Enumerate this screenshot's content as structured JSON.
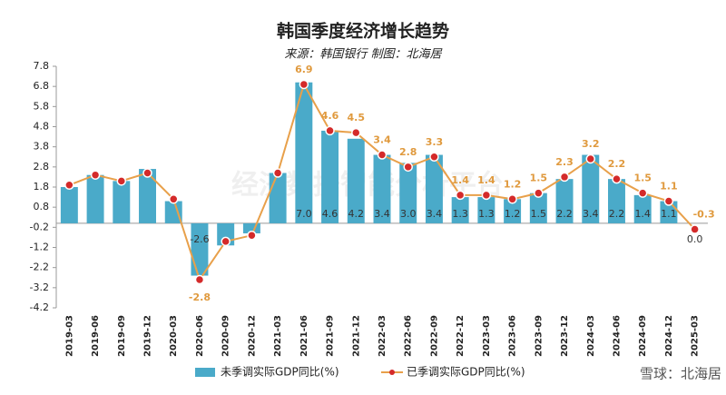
{
  "chart_data": {
    "type": "bar-line",
    "title": "韩国季度经济增长趋势",
    "subtitle": "来源：韩国银行  制图：北海居",
    "watermark": "雪球：北海居",
    "background_watermark": "经济数据智能分析平台",
    "categories": [
      "2019-03",
      "2019-06",
      "2019-09",
      "2019-12",
      "2020-03",
      "2020-06",
      "2020-09",
      "2020-12",
      "2021-03",
      "2021-06",
      "2021-09",
      "2021-12",
      "2022-03",
      "2022-06",
      "2022-09",
      "2022-12",
      "2023-03",
      "2023-06",
      "2023-09",
      "2023-12",
      "2024-03",
      "2024-06",
      "2024-09",
      "2024-12",
      "2025-03"
    ],
    "series": [
      {
        "name": "未季调实际GDP同比(%)",
        "type": "bar",
        "color": "#4aaac9",
        "values": [
          1.8,
          2.4,
          2.1,
          2.7,
          1.1,
          -2.6,
          -1.1,
          -0.5,
          2.5,
          7.0,
          4.6,
          4.2,
          3.4,
          3.0,
          3.4,
          1.3,
          1.3,
          1.2,
          1.5,
          2.2,
          3.4,
          2.2,
          1.4,
          1.1,
          0.0
        ],
        "value_labels": [
          null,
          null,
          null,
          null,
          null,
          "-2.6",
          null,
          null,
          null,
          "7.0",
          "4.6",
          "4.2",
          "3.4",
          "3.0",
          "3.4",
          "1.3",
          "1.3",
          "1.2",
          "1.5",
          "2.2",
          "3.4",
          "2.2",
          "1.4",
          "1.1",
          "0.0"
        ]
      },
      {
        "name": "已季调实际GDP同比(%)",
        "type": "line",
        "color": "#e8a04a",
        "marker_color": "#d42a2a",
        "values": [
          1.9,
          2.4,
          2.1,
          2.5,
          1.2,
          -2.8,
          -0.9,
          -0.6,
          2.5,
          6.9,
          4.6,
          4.5,
          3.4,
          2.8,
          3.3,
          1.4,
          1.4,
          1.2,
          1.5,
          2.3,
          3.2,
          2.2,
          1.5,
          1.1,
          -0.3
        ],
        "value_labels": [
          null,
          null,
          null,
          null,
          null,
          "-2.8",
          null,
          null,
          null,
          "6.9",
          "4.6",
          "4.5",
          "3.4",
          "2.8",
          "3.3",
          "1.4",
          "1.4",
          "1.2",
          "1.5",
          "2.3",
          "3.2",
          "2.2",
          "1.5",
          "1.1",
          "-0.3"
        ]
      }
    ],
    "ylim": [
      -4.2,
      7.8
    ],
    "yticks": [
      -4.2,
      -3.2,
      -2.2,
      -1.2,
      -0.2,
      0.8,
      1.8,
      2.8,
      3.8,
      4.8,
      5.8,
      6.8,
      7.8
    ],
    "grid": false
  }
}
